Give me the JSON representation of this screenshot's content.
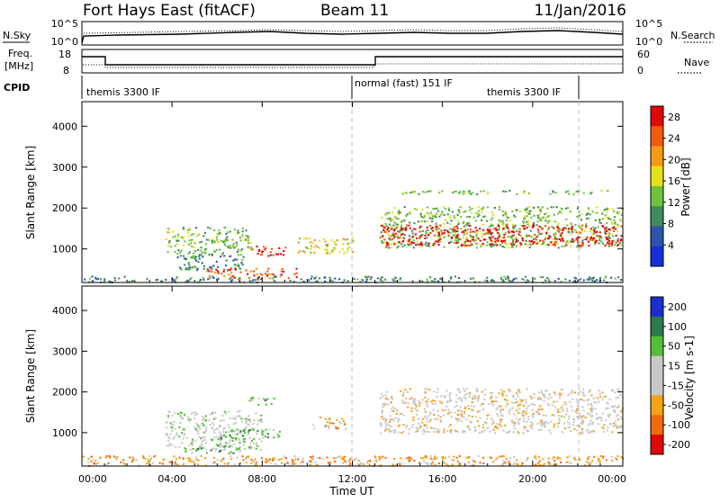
{
  "header": {
    "station": "Fort Hays East (fitACF)",
    "beam": "Beam 11",
    "date": "11/Jan/2016"
  },
  "top_panels": {
    "noise_left_label": "N.Sky",
    "noise_left_ticks": [
      "10^5",
      "10^0"
    ],
    "noise_right_label": "N.Search",
    "noise_right_ticks": [
      "10^5",
      "10^0"
    ],
    "freq_left_label_1": "Freq.",
    "freq_left_label_2": "[MHz]",
    "freq_left_ticks": [
      "18",
      "8"
    ],
    "freq_right_label": "Nave",
    "freq_right_ticks": [
      "60",
      "0"
    ],
    "cpid_label": "CPID",
    "cpid_segments": [
      "themis 3300 IF",
      "normal (fast) 151 IF",
      "themis 3300 IF"
    ]
  },
  "colors": {
    "power_scale": [
      "#1530d8",
      "#2c55a8",
      "#3f8a5e",
      "#6fc23b",
      "#e3e01c",
      "#f49a14",
      "#f25a10",
      "#e00808"
    ],
    "velocity_scale": [
      "#1a2fd0",
      "#2d7a4a",
      "#54bd3a",
      "#c8c8c8",
      "#c8c8c8",
      "#f4a216",
      "#f06a10",
      "#e00808"
    ]
  },
  "chart_data": [
    {
      "type": "heatmap",
      "name": "power",
      "xlabel": "",
      "ylabel": "Slant Range [km]",
      "x_ticks": [
        "00:00",
        "04:00",
        "08:00",
        "12:00",
        "16:00",
        "20:00",
        "00:00"
      ],
      "y_ticks": [
        1000,
        2000,
        3000,
        4000
      ],
      "ylim": [
        180,
        4600
      ],
      "colorbar_label": "Power [dB]",
      "colorbar_ticks": [
        4,
        8,
        12,
        16,
        20,
        24,
        28
      ],
      "colorbar_range": [
        0,
        30
      ],
      "regions": [
        {
          "t0": 3.7,
          "t1": 7.5,
          "r0": 900,
          "r1": 1550,
          "level": 3
        },
        {
          "t0": 4.2,
          "t1": 7.2,
          "r0": 500,
          "r1": 900,
          "level": 2
        },
        {
          "t0": 7.4,
          "t1": 9.0,
          "r0": 850,
          "r1": 1100,
          "level": 7
        },
        {
          "t0": 5.5,
          "t1": 9.5,
          "r0": 300,
          "r1": 550,
          "level": 6
        },
        {
          "t0": 9.5,
          "t1": 12.0,
          "r0": 900,
          "r1": 1300,
          "level": 4
        },
        {
          "t0": 13.2,
          "t1": 24.0,
          "r0": 1050,
          "r1": 2050,
          "level": 3
        },
        {
          "t0": 13.2,
          "t1": 24.0,
          "r0": 1100,
          "r1": 1600,
          "level": 7
        },
        {
          "t0": 14.0,
          "t1": 23.5,
          "r0": 2350,
          "r1": 2450,
          "level": 3
        },
        {
          "t0": 0.0,
          "t1": 24.0,
          "r0": 200,
          "r1": 350,
          "level": 2
        }
      ]
    },
    {
      "type": "heatmap",
      "name": "velocity",
      "xlabel": "Time UT",
      "ylabel": "Slant Range [km]",
      "x_ticks": [
        "00:00",
        "04:00",
        "08:00",
        "12:00",
        "16:00",
        "20:00",
        "00:00"
      ],
      "y_ticks": [
        1000,
        2000,
        3000,
        4000
      ],
      "ylim": [
        180,
        4600
      ],
      "colorbar_label": "Velocity [m s-1]",
      "colorbar_ticks": [
        200,
        100,
        50,
        15,
        -15,
        -50,
        -100,
        -200
      ],
      "regions": [
        {
          "t0": 3.7,
          "t1": 8.0,
          "r0": 600,
          "r1": 1550,
          "level": 3
        },
        {
          "t0": 6.0,
          "t1": 8.8,
          "r0": 850,
          "r1": 1100,
          "level": 2
        },
        {
          "t0": 4.5,
          "t1": 7.0,
          "r0": 500,
          "r1": 700,
          "level": 2
        },
        {
          "t0": 7.3,
          "t1": 8.5,
          "r0": 1700,
          "r1": 1900,
          "level": 2
        },
        {
          "t0": 10.2,
          "t1": 11.8,
          "r0": 1100,
          "r1": 1400,
          "level": 5
        },
        {
          "t0": 13.2,
          "t1": 24.0,
          "r0": 1000,
          "r1": 2100,
          "level": 4
        },
        {
          "t0": 0.0,
          "t1": 24.0,
          "r0": 200,
          "r1": 450,
          "level": 5
        }
      ]
    }
  ]
}
